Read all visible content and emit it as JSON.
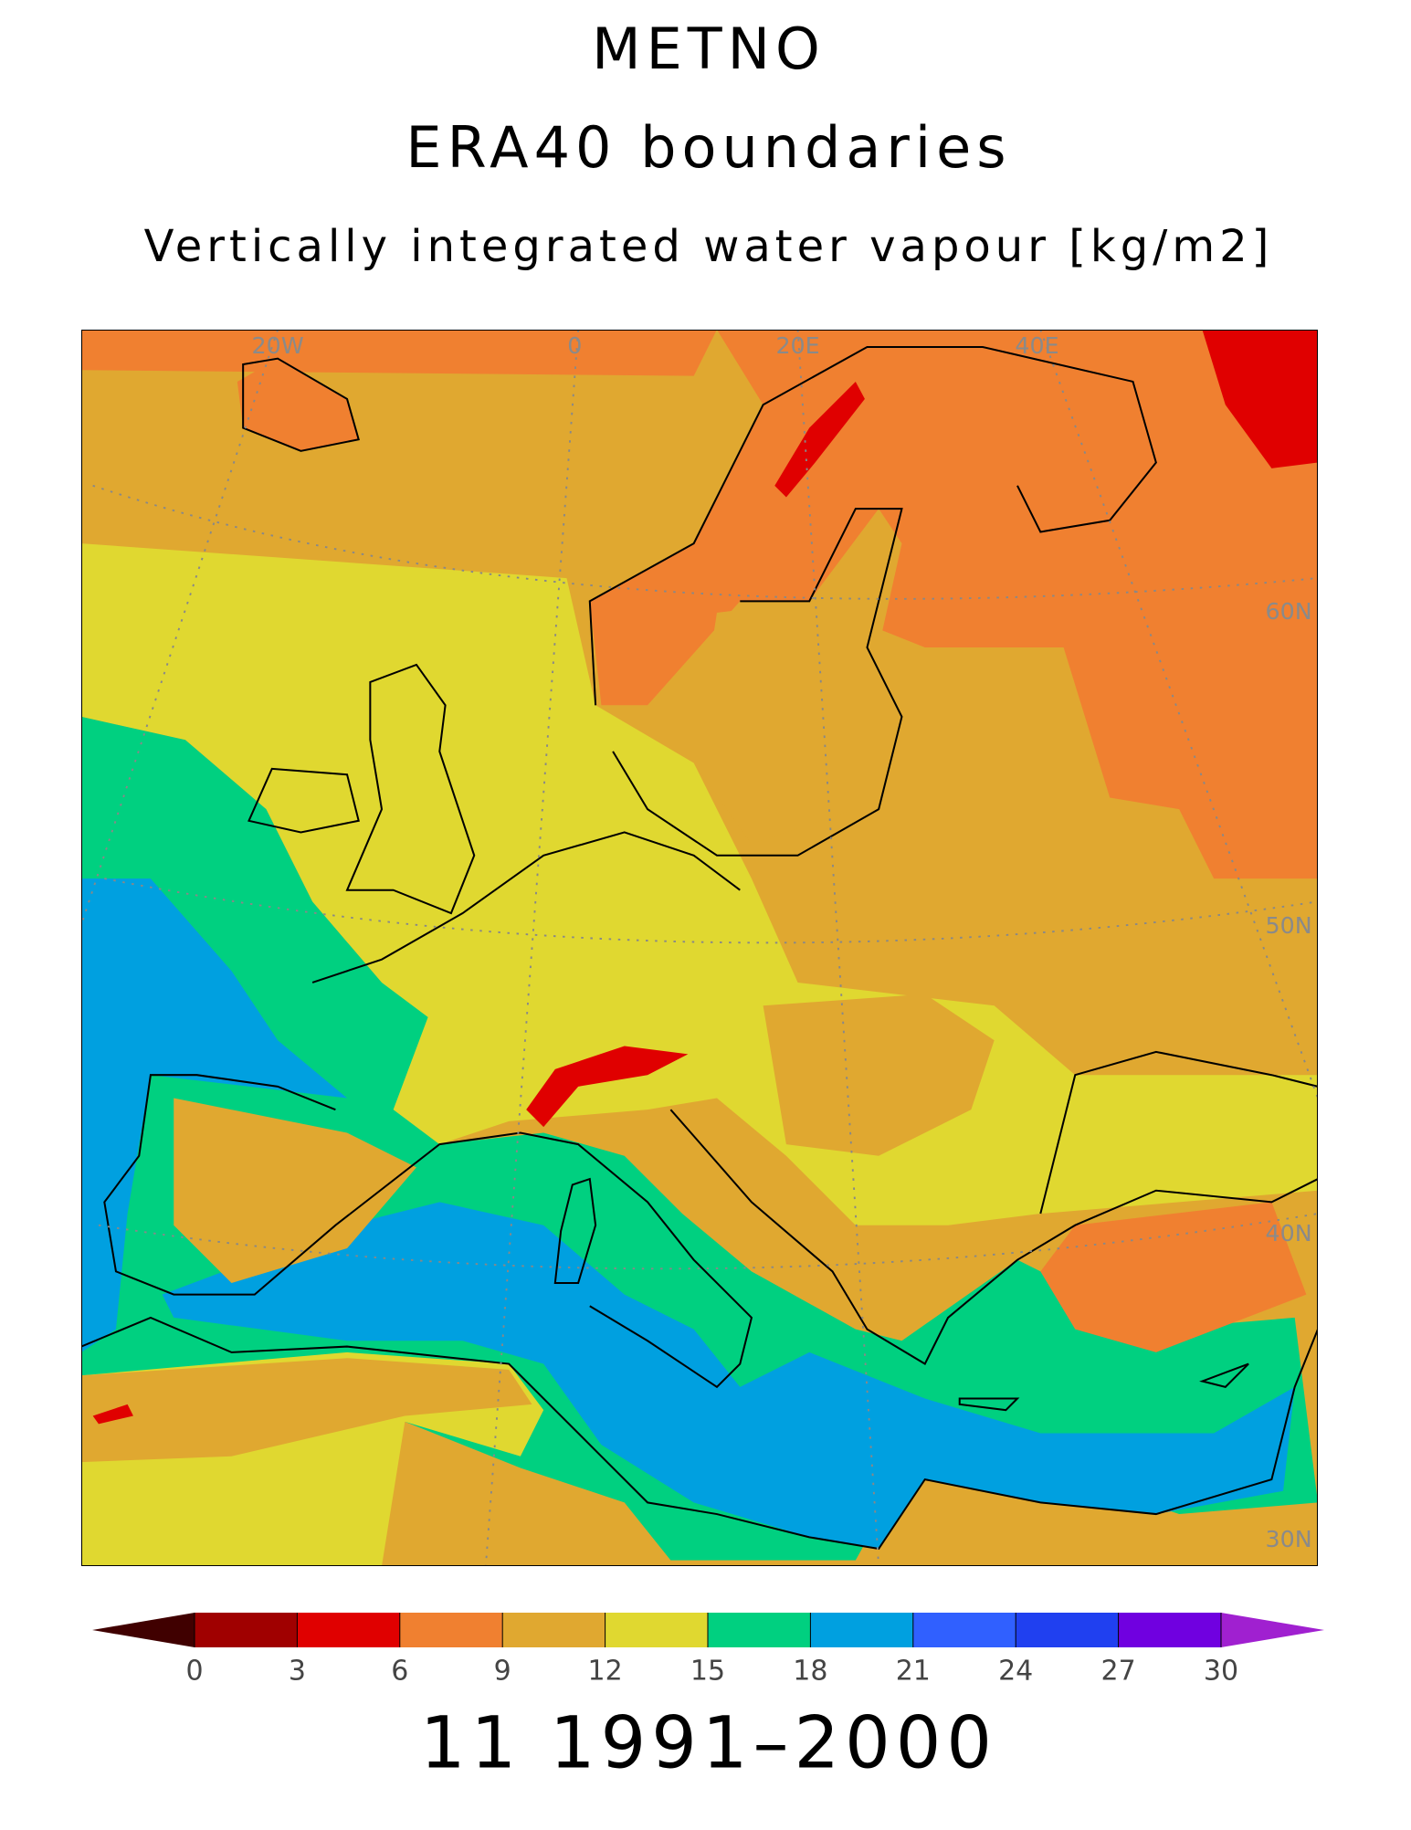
{
  "title": "METNO",
  "subtitle": "ERA40 boundaries",
  "variable": "Vertically integrated water vapour [kg/m2]",
  "map": {
    "lon_labels": [
      "20W",
      "0",
      "20E",
      "40E"
    ],
    "lat_labels": [
      "60N",
      "50N",
      "40N",
      "30N"
    ]
  },
  "colorbar": {
    "levels": [
      0,
      3,
      6,
      9,
      12,
      15,
      18,
      21,
      24,
      27,
      30
    ],
    "colors": [
      "#a00000",
      "#e00000",
      "#f08030",
      "#e0a830",
      "#e0d830",
      "#00d080",
      "#00a0e0",
      "#3060ff",
      "#2040f0",
      "#7000e0"
    ],
    "under_color": "#400000",
    "over_color": "#a020d0"
  },
  "footer": "11 1991–2000"
}
